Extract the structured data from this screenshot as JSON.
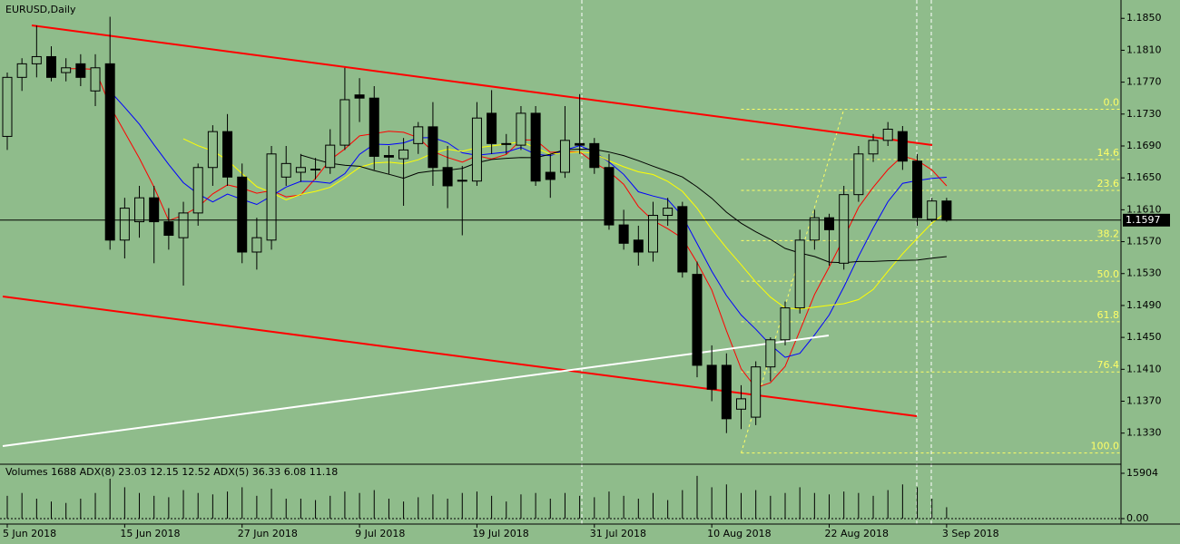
{
  "chart_data": {
    "type": "candlestick",
    "title": "EURUSD,Daily",
    "up_color": "#8fbc8b",
    "down_color": "#000000",
    "candles": [
      {
        "open": 1.1702,
        "high": 1.1782,
        "low": 1.1685,
        "close": 1.1776
      },
      {
        "open": 1.1776,
        "high": 1.18,
        "low": 1.1759,
        "close": 1.1793
      },
      {
        "open": 1.1793,
        "high": 1.1841,
        "low": 1.1776,
        "close": 1.1802
      },
      {
        "open": 1.1802,
        "high": 1.1815,
        "low": 1.1771,
        "close": 1.1776
      },
      {
        "open": 1.1782,
        "high": 1.18,
        "low": 1.1771,
        "close": 1.1788
      },
      {
        "open": 1.1793,
        "high": 1.1805,
        "low": 1.1765,
        "close": 1.1776
      },
      {
        "open": 1.1759,
        "high": 1.1805,
        "low": 1.174,
        "close": 1.1788
      },
      {
        "open": 1.1793,
        "high": 1.1852,
        "low": 1.156,
        "close": 1.1572
      },
      {
        "open": 1.1572,
        "high": 1.1625,
        "low": 1.1549,
        "close": 1.1612
      },
      {
        "open": 1.1595,
        "high": 1.164,
        "low": 1.1575,
        "close": 1.1625
      },
      {
        "open": 1.1625,
        "high": 1.164,
        "low": 1.1543,
        "close": 1.1595
      },
      {
        "open": 1.1595,
        "high": 1.1612,
        "low": 1.156,
        "close": 1.1578
      },
      {
        "open": 1.1575,
        "high": 1.162,
        "low": 1.1515,
        "close": 1.1606
      },
      {
        "open": 1.1606,
        "high": 1.1668,
        "low": 1.159,
        "close": 1.1663
      },
      {
        "open": 1.1663,
        "high": 1.1716,
        "low": 1.164,
        "close": 1.1708
      },
      {
        "open": 1.1708,
        "high": 1.173,
        "low": 1.164,
        "close": 1.1651
      },
      {
        "open": 1.1651,
        "high": 1.1668,
        "low": 1.1543,
        "close": 1.1557
      },
      {
        "open": 1.1557,
        "high": 1.16,
        "low": 1.1535,
        "close": 1.1575
      },
      {
        "open": 1.1572,
        "high": 1.169,
        "low": 1.156,
        "close": 1.168
      },
      {
        "open": 1.1651,
        "high": 1.169,
        "low": 1.164,
        "close": 1.1668
      },
      {
        "open": 1.1657,
        "high": 1.168,
        "low": 1.1645,
        "close": 1.1663
      },
      {
        "open": 1.166,
        "high": 1.1675,
        "low": 1.1648,
        "close": 1.1661
      },
      {
        "open": 1.1663,
        "high": 1.1711,
        "low": 1.1655,
        "close": 1.1691
      },
      {
        "open": 1.1691,
        "high": 1.1788,
        "low": 1.1685,
        "close": 1.1748
      },
      {
        "open": 1.1754,
        "high": 1.1775,
        "low": 1.172,
        "close": 1.175
      },
      {
        "open": 1.175,
        "high": 1.1765,
        "low": 1.166,
        "close": 1.1677
      },
      {
        "open": 1.1678,
        "high": 1.169,
        "low": 1.1655,
        "close": 1.1676
      },
      {
        "open": 1.1674,
        "high": 1.17,
        "low": 1.1615,
        "close": 1.1685
      },
      {
        "open": 1.1693,
        "high": 1.172,
        "low": 1.168,
        "close": 1.1714
      },
      {
        "open": 1.1714,
        "high": 1.1745,
        "low": 1.164,
        "close": 1.1663
      },
      {
        "open": 1.1663,
        "high": 1.169,
        "low": 1.1612,
        "close": 1.164
      },
      {
        "open": 1.1646,
        "high": 1.1665,
        "low": 1.1578,
        "close": 1.1647
      },
      {
        "open": 1.1646,
        "high": 1.1745,
        "low": 1.164,
        "close": 1.1725
      },
      {
        "open": 1.1731,
        "high": 1.176,
        "low": 1.168,
        "close": 1.1693
      },
      {
        "open": 1.1693,
        "high": 1.1705,
        "low": 1.168,
        "close": 1.1692
      },
      {
        "open": 1.1691,
        "high": 1.174,
        "low": 1.1685,
        "close": 1.1731
      },
      {
        "open": 1.1731,
        "high": 1.174,
        "low": 1.164,
        "close": 1.1646
      },
      {
        "open": 1.1657,
        "high": 1.168,
        "low": 1.1625,
        "close": 1.1648
      },
      {
        "open": 1.1657,
        "high": 1.174,
        "low": 1.165,
        "close": 1.1697
      },
      {
        "open": 1.1693,
        "high": 1.1755,
        "low": 1.168,
        "close": 1.1691
      },
      {
        "open": 1.1693,
        "high": 1.17,
        "low": 1.1655,
        "close": 1.1663
      },
      {
        "open": 1.1663,
        "high": 1.168,
        "low": 1.1585,
        "close": 1.1591
      },
      {
        "open": 1.1591,
        "high": 1.161,
        "low": 1.156,
        "close": 1.1568
      },
      {
        "open": 1.1572,
        "high": 1.159,
        "low": 1.154,
        "close": 1.1557
      },
      {
        "open": 1.1557,
        "high": 1.162,
        "low": 1.1545,
        "close": 1.1603
      },
      {
        "open": 1.1603,
        "high": 1.1625,
        "low": 1.159,
        "close": 1.1612
      },
      {
        "open": 1.1614,
        "high": 1.162,
        "low": 1.1525,
        "close": 1.1532
      },
      {
        "open": 1.1529,
        "high": 1.1545,
        "low": 1.14,
        "close": 1.1415
      },
      {
        "open": 1.1415,
        "high": 1.144,
        "low": 1.137,
        "close": 1.1385
      },
      {
        "open": 1.1415,
        "high": 1.143,
        "low": 1.133,
        "close": 1.1348
      },
      {
        "open": 1.136,
        "high": 1.139,
        "low": 1.1335,
        "close": 1.1373
      },
      {
        "open": 1.135,
        "high": 1.142,
        "low": 1.134,
        "close": 1.1413
      },
      {
        "open": 1.1413,
        "high": 1.145,
        "low": 1.1395,
        "close": 1.1447
      },
      {
        "open": 1.1447,
        "high": 1.1495,
        "low": 1.144,
        "close": 1.1487
      },
      {
        "open": 1.1487,
        "high": 1.1585,
        "low": 1.148,
        "close": 1.1572
      },
      {
        "open": 1.1572,
        "high": 1.161,
        "low": 1.156,
        "close": 1.16
      },
      {
        "open": 1.16,
        "high": 1.1605,
        "low": 1.154,
        "close": 1.1585
      },
      {
        "open": 1.1543,
        "high": 1.164,
        "low": 1.1535,
        "close": 1.1629
      },
      {
        "open": 1.1629,
        "high": 1.169,
        "low": 1.162,
        "close": 1.168
      },
      {
        "open": 1.168,
        "high": 1.1705,
        "low": 1.167,
        "close": 1.1697
      },
      {
        "open": 1.1697,
        "high": 1.172,
        "low": 1.169,
        "close": 1.1711
      },
      {
        "open": 1.1708,
        "high": 1.1715,
        "low": 1.166,
        "close": 1.1671
      },
      {
        "open": 1.1671,
        "high": 1.168,
        "low": 1.159,
        "close": 1.16
      },
      {
        "open": 1.1598,
        "high": 1.1625,
        "low": 1.1595,
        "close": 1.1621
      },
      {
        "open": 1.1621,
        "high": 1.1625,
        "low": 1.1595,
        "close": 1.1597
      }
    ],
    "ylim": [
      1.1291,
      1.1873
    ],
    "yticks": [
      {
        "value": 1.185,
        "label": "1.1850"
      },
      {
        "value": 1.181,
        "label": "1.1810"
      },
      {
        "value": 1.177,
        "label": "1.1770"
      },
      {
        "value": 1.173,
        "label": "1.1730"
      },
      {
        "value": 1.169,
        "label": "1.1690"
      },
      {
        "value": 1.165,
        "label": "1.1650"
      },
      {
        "value": 1.161,
        "label": "1.1610"
      },
      {
        "value": 1.157,
        "label": "1.1570"
      },
      {
        "value": 1.153,
        "label": "1.1530"
      },
      {
        "value": 1.149,
        "label": "1.1490"
      },
      {
        "value": 1.145,
        "label": "1.1450"
      },
      {
        "value": 1.141,
        "label": "1.1410"
      },
      {
        "value": 1.137,
        "label": "1.1370"
      },
      {
        "value": 1.133,
        "label": "1.1330"
      }
    ],
    "current_price": 1.1597,
    "xtick_labels": [
      "5 Jun 2018",
      "15 Jun 2018",
      "27 Jun 2018",
      "9 Jul 2018",
      "19 Jul 2018",
      "31 Jul 2018",
      "10 Aug 2018",
      "22 Aug 2018",
      "3 Sep 2018"
    ],
    "fibonacci": {
      "high": 1.1736,
      "low": 1.1305,
      "color": "#ffff66",
      "levels": [
        {
          "value": 0,
          "label": "0.0"
        },
        14.6,
        23.6,
        38.2,
        {
          "value": 50,
          "label": "50.0"
        },
        61.8,
        76.4,
        {
          "value": 100,
          "label": "100.0"
        }
      ]
    },
    "volume_panel": {
      "label": "Volumes 1688 ADX(8) 23.03 12.15 12.52 ADX(5) 36.33 6.08 11.18",
      "ylim": [
        0,
        15904
      ],
      "yticks": [
        15904,
        {
          "value": 0,
          "label": "0.00"
        }
      ],
      "values": [
        8000,
        9000,
        7000,
        6000,
        5500,
        7000,
        9000,
        14000,
        11000,
        9000,
        8000,
        7500,
        10000,
        9000,
        8500,
        9500,
        11000,
        8000,
        10500,
        7000,
        7000,
        6500,
        8000,
        9500,
        9000,
        10000,
        7000,
        6000,
        7500,
        8500,
        7000,
        9000,
        9500,
        8000,
        6000,
        8500,
        9000,
        7000,
        9000,
        8000,
        7500,
        9500,
        8000,
        7000,
        9000,
        6500,
        10000,
        15000,
        11000,
        12000,
        9000,
        10000,
        8000,
        9000,
        11000,
        9000,
        8500,
        9500,
        9000,
        8000,
        10000,
        12000,
        11000,
        7000,
        4000
      ]
    }
  }
}
